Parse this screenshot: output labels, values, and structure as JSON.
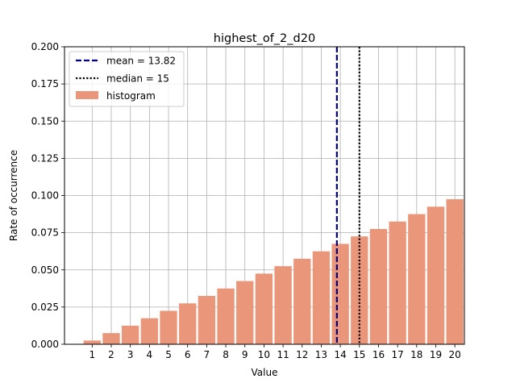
{
  "chart_data": {
    "type": "bar",
    "title": "highest_of_2_d20",
    "xlabel": "Value",
    "ylabel": "Rate of occurrence",
    "categories": [
      "1",
      "2",
      "3",
      "4",
      "5",
      "6",
      "7",
      "8",
      "9",
      "10",
      "11",
      "12",
      "13",
      "14",
      "15",
      "16",
      "17",
      "18",
      "19",
      "20"
    ],
    "values": [
      0.0025,
      0.0075,
      0.0125,
      0.0175,
      0.0225,
      0.0275,
      0.0325,
      0.0375,
      0.0425,
      0.0475,
      0.0525,
      0.0575,
      0.0625,
      0.0675,
      0.0725,
      0.0775,
      0.0825,
      0.0875,
      0.0925,
      0.0975
    ],
    "ylim": [
      0,
      0.2
    ],
    "yticks": [
      "0.000",
      "0.025",
      "0.050",
      "0.075",
      "0.100",
      "0.125",
      "0.150",
      "0.175",
      "0.200"
    ],
    "grid": true,
    "legend_position": "top-left",
    "bar_color": "#e9967a",
    "mean": {
      "value": 13.82,
      "label": "mean = 13.82",
      "color": "#000080",
      "style": "dashed"
    },
    "median": {
      "value": 15,
      "label": "median = 15",
      "color": "#000000",
      "style": "dotted"
    },
    "histogram_label": "histogram"
  }
}
